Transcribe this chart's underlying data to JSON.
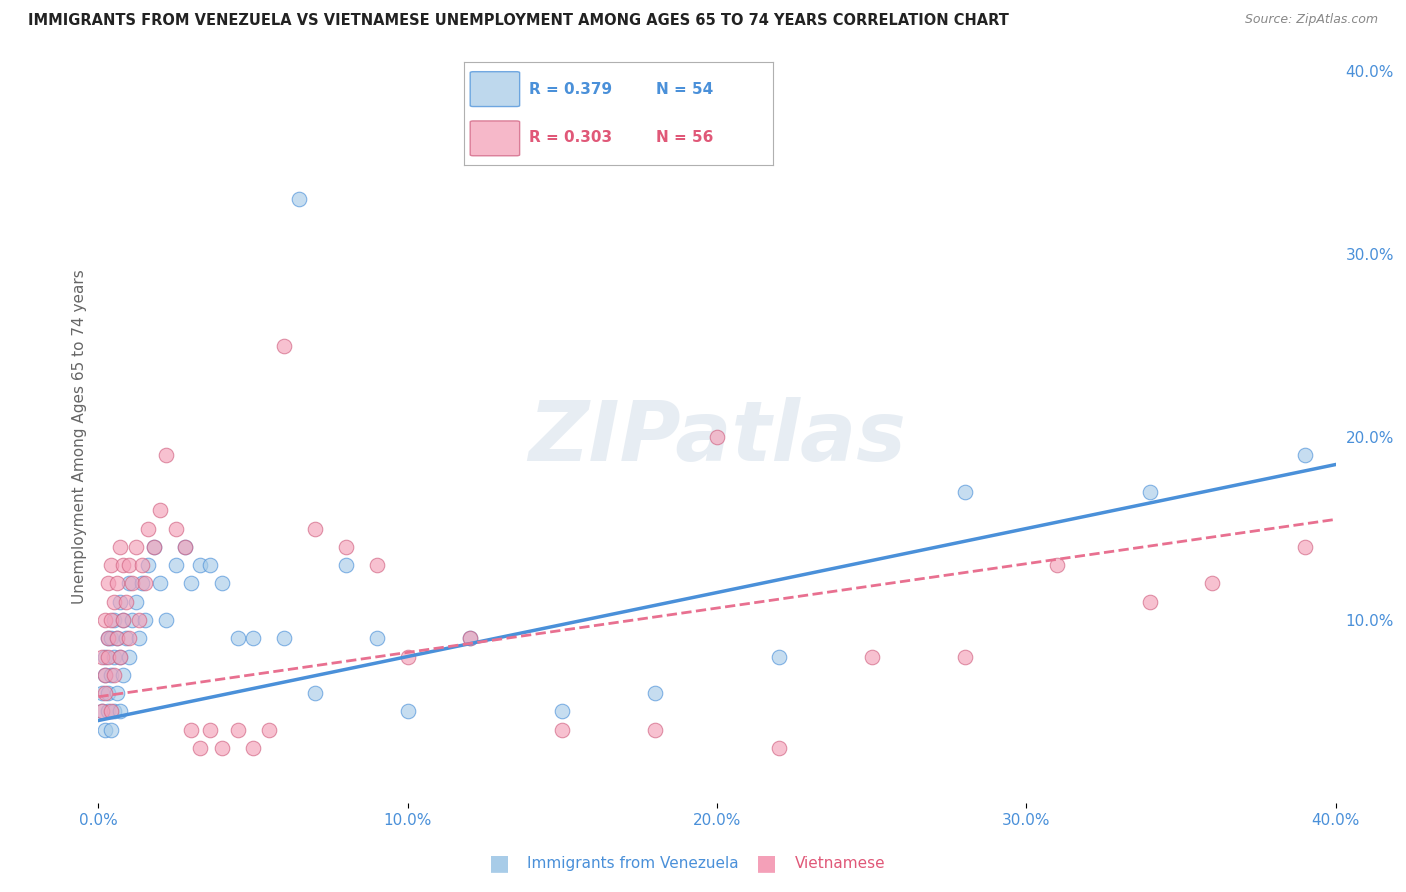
{
  "title": "IMMIGRANTS FROM VENEZUELA VS VIETNAMESE UNEMPLOYMENT AMONG AGES 65 TO 74 YEARS CORRELATION CHART",
  "source": "Source: ZipAtlas.com",
  "ylabel": "Unemployment Among Ages 65 to 74 years",
  "xlabel_legend1": "Immigrants from Venezuela",
  "xlabel_legend2": "Vietnamese",
  "R1": 0.379,
  "N1": 54,
  "R2": 0.303,
  "N2": 56,
  "color1": "#a8cce8",
  "color2": "#f4a0b8",
  "trendline1_color": "#4a90d9",
  "trendline2_color": "#e87090",
  "xlim": [
    0.0,
    0.4
  ],
  "ylim": [
    0.0,
    0.4
  ],
  "background_color": "#ffffff",
  "grid_color": "#d0d0d0",
  "watermark": "ZIPatlas",
  "ven_x": [
    0.001,
    0.001,
    0.002,
    0.002,
    0.002,
    0.003,
    0.003,
    0.003,
    0.004,
    0.004,
    0.004,
    0.005,
    0.005,
    0.005,
    0.006,
    0.006,
    0.007,
    0.007,
    0.007,
    0.008,
    0.008,
    0.009,
    0.01,
    0.01,
    0.011,
    0.012,
    0.013,
    0.014,
    0.015,
    0.016,
    0.018,
    0.02,
    0.022,
    0.025,
    0.028,
    0.03,
    0.033,
    0.036,
    0.04,
    0.045,
    0.05,
    0.06,
    0.065,
    0.07,
    0.08,
    0.09,
    0.1,
    0.12,
    0.15,
    0.18,
    0.22,
    0.28,
    0.34,
    0.39
  ],
  "ven_y": [
    0.05,
    0.06,
    0.04,
    0.07,
    0.08,
    0.05,
    0.06,
    0.09,
    0.04,
    0.07,
    0.09,
    0.05,
    0.08,
    0.1,
    0.06,
    0.09,
    0.05,
    0.08,
    0.11,
    0.07,
    0.1,
    0.09,
    0.08,
    0.12,
    0.1,
    0.11,
    0.09,
    0.12,
    0.1,
    0.13,
    0.14,
    0.12,
    0.1,
    0.13,
    0.14,
    0.12,
    0.13,
    0.13,
    0.12,
    0.09,
    0.09,
    0.09,
    0.33,
    0.06,
    0.13,
    0.09,
    0.05,
    0.09,
    0.05,
    0.06,
    0.08,
    0.17,
    0.17,
    0.19
  ],
  "vie_x": [
    0.001,
    0.001,
    0.002,
    0.002,
    0.002,
    0.003,
    0.003,
    0.003,
    0.004,
    0.004,
    0.004,
    0.005,
    0.005,
    0.006,
    0.006,
    0.007,
    0.007,
    0.008,
    0.008,
    0.009,
    0.01,
    0.01,
    0.011,
    0.012,
    0.013,
    0.014,
    0.015,
    0.016,
    0.018,
    0.02,
    0.022,
    0.025,
    0.028,
    0.03,
    0.033,
    0.036,
    0.04,
    0.045,
    0.05,
    0.055,
    0.06,
    0.07,
    0.08,
    0.09,
    0.1,
    0.12,
    0.15,
    0.18,
    0.2,
    0.22,
    0.25,
    0.28,
    0.31,
    0.34,
    0.36,
    0.39
  ],
  "vie_y": [
    0.05,
    0.08,
    0.06,
    0.07,
    0.1,
    0.08,
    0.09,
    0.12,
    0.05,
    0.1,
    0.13,
    0.07,
    0.11,
    0.09,
    0.12,
    0.08,
    0.14,
    0.1,
    0.13,
    0.11,
    0.09,
    0.13,
    0.12,
    0.14,
    0.1,
    0.13,
    0.12,
    0.15,
    0.14,
    0.16,
    0.19,
    0.15,
    0.14,
    0.04,
    0.03,
    0.04,
    0.03,
    0.04,
    0.03,
    0.04,
    0.25,
    0.15,
    0.14,
    0.13,
    0.08,
    0.09,
    0.04,
    0.04,
    0.2,
    0.03,
    0.08,
    0.08,
    0.13,
    0.11,
    0.12,
    0.14
  ],
  "trendline1_x": [
    0.0,
    0.4
  ],
  "trendline1_y": [
    0.045,
    0.185
  ],
  "trendline2_x": [
    0.0,
    0.4
  ],
  "trendline2_y": [
    0.058,
    0.155
  ]
}
